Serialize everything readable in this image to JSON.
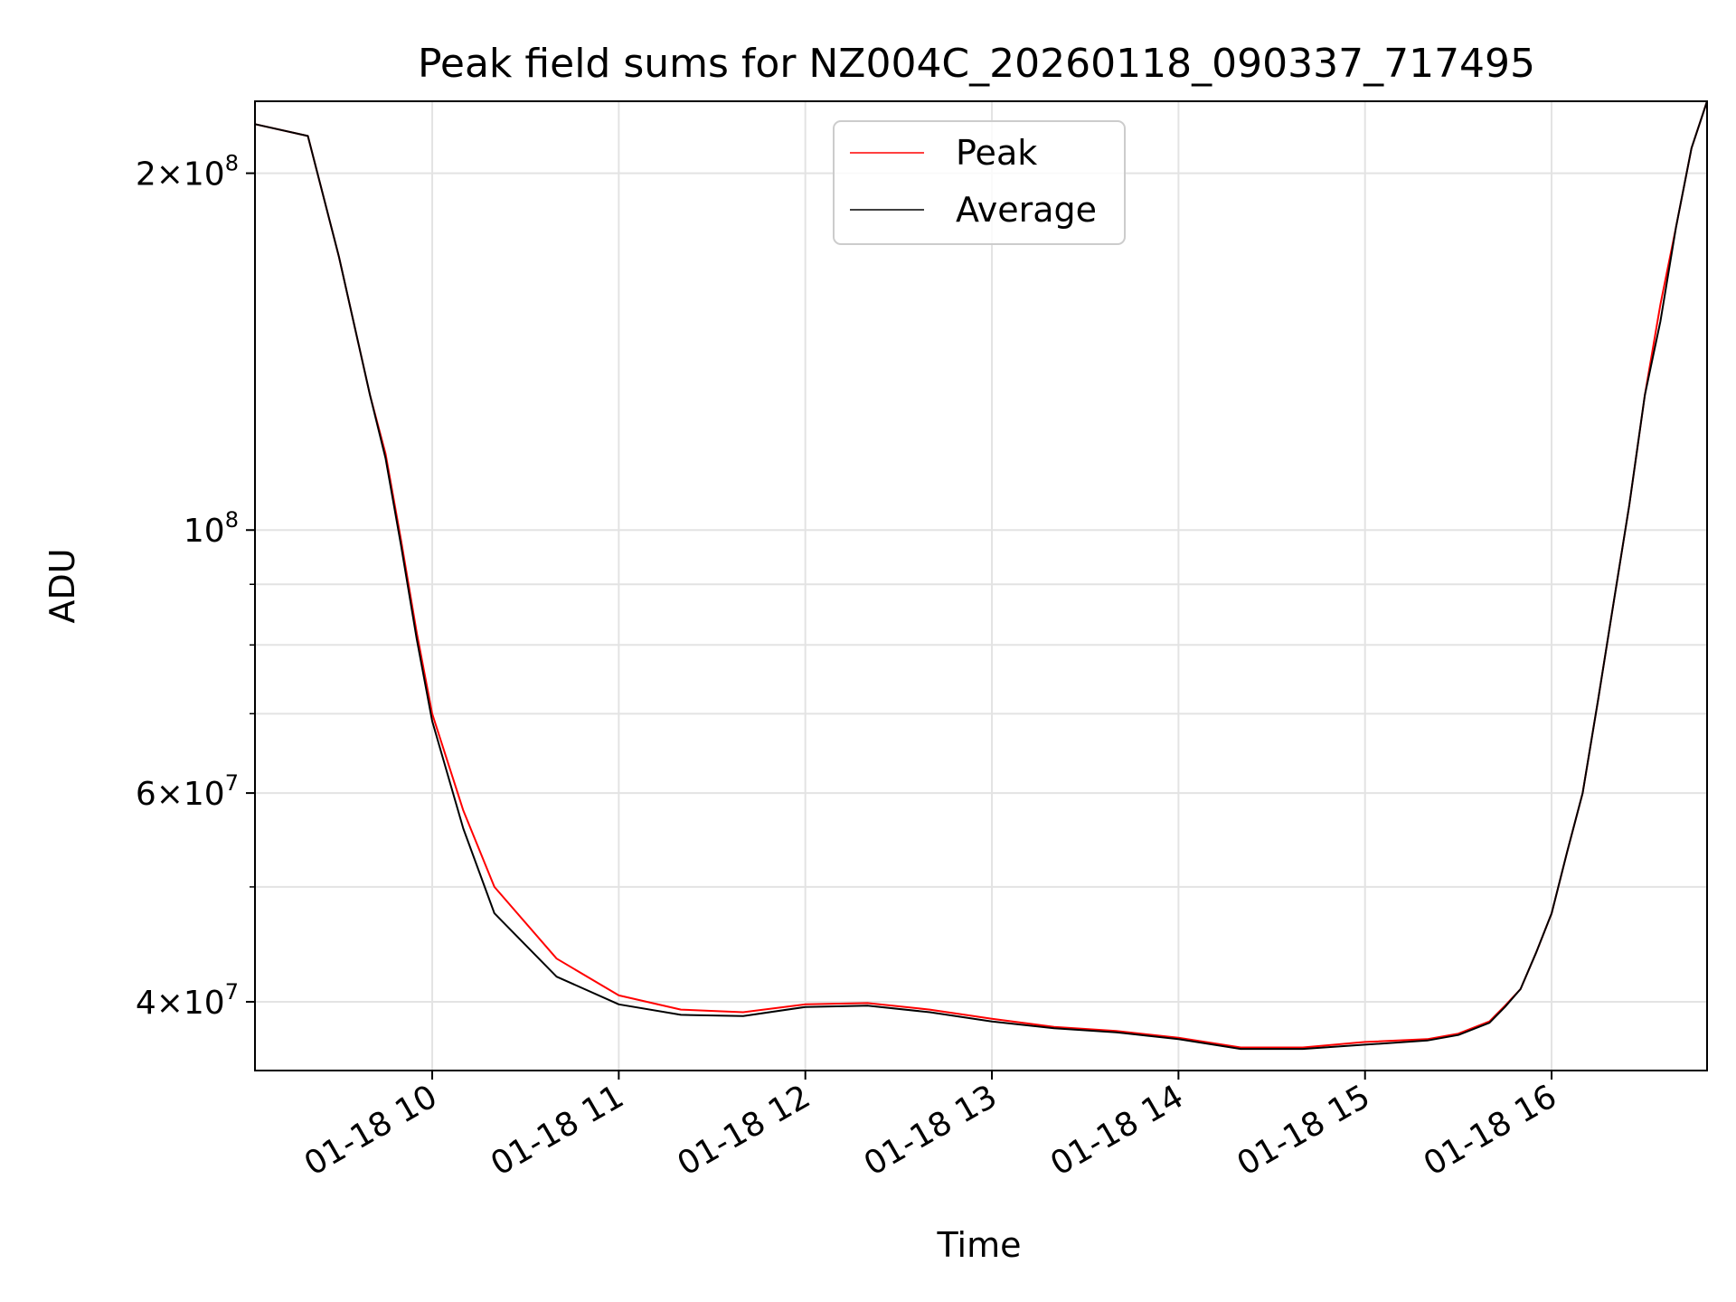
{
  "chart_data": {
    "type": "line",
    "title": "Peak field sums for NZ004C_20260118_090337_717495",
    "xlabel": "Time",
    "ylabel": "ADU",
    "yscale": "log",
    "xlim": [
      "2026-01-18 09:03",
      "2026-01-18 16:50"
    ],
    "ylim": [
      35000000,
      230000000
    ],
    "x_ticks": [
      "01-18 10",
      "01-18 11",
      "01-18 12",
      "01-18 13",
      "01-18 14",
      "01-18 15",
      "01-18 16"
    ],
    "y_ticks": [
      {
        "mantissa": "2",
        "exp": "8",
        "value": 200000000
      },
      {
        "mantissa": "",
        "exp": "8",
        "value": 100000000
      },
      {
        "mantissa": "6",
        "exp": "7",
        "value": 60000000
      },
      {
        "mantissa": "4",
        "exp": "7",
        "value": 40000000
      }
    ],
    "grid": true,
    "legend_position": "top-center",
    "colors": {
      "peak": "#ff0000",
      "average": "#000000"
    },
    "series": [
      {
        "name": "Peak",
        "x": [
          "09:03",
          "09:20",
          "09:30",
          "09:40",
          "09:45",
          "09:50",
          "09:55",
          "10:00",
          "10:10",
          "10:20",
          "10:40",
          "11:00",
          "11:20",
          "11:40",
          "12:00",
          "12:20",
          "12:40",
          "13:00",
          "13:20",
          "13:40",
          "14:00",
          "14:20",
          "14:40",
          "15:00",
          "15:20",
          "15:30",
          "15:40",
          "15:45",
          "15:50",
          "15:55",
          "16:00",
          "16:05",
          "16:10",
          "16:15",
          "16:20",
          "16:25",
          "16:30",
          "16:35",
          "16:40",
          "16:45",
          "16:50"
        ],
        "y": [
          220000000,
          215000000,
          170000000,
          130000000,
          116000000,
          98000000,
          82000000,
          70000000,
          58000000,
          50000000,
          43500000,
          40500000,
          39400000,
          39200000,
          39800000,
          39900000,
          39400000,
          38700000,
          38100000,
          37800000,
          37300000,
          36600000,
          36600000,
          37000000,
          37200000,
          37600000,
          38500000,
          39700000,
          41000000,
          44000000,
          47500000,
          53500000,
          60000000,
          72000000,
          87000000,
          105000000,
          130000000,
          155000000,
          180000000,
          210000000,
          230000000
        ]
      },
      {
        "name": "Average",
        "x": [
          "09:03",
          "09:20",
          "09:30",
          "09:40",
          "09:45",
          "09:50",
          "09:55",
          "10:00",
          "10:10",
          "10:20",
          "10:40",
          "11:00",
          "11:20",
          "11:40",
          "12:00",
          "12:20",
          "12:40",
          "13:00",
          "13:20",
          "13:40",
          "14:00",
          "14:20",
          "14:40",
          "15:00",
          "15:20",
          "15:30",
          "15:40",
          "15:45",
          "15:50",
          "15:55",
          "16:00",
          "16:05",
          "16:10",
          "16:15",
          "16:20",
          "16:25",
          "16:30",
          "16:35",
          "16:40",
          "16:45",
          "16:50"
        ],
        "y": [
          220000000,
          215000000,
          170000000,
          130000000,
          115000000,
          97000000,
          81000000,
          69000000,
          56000000,
          47500000,
          42000000,
          39800000,
          39000000,
          38900000,
          39600000,
          39700000,
          39200000,
          38500000,
          38000000,
          37700000,
          37200000,
          36500000,
          36500000,
          36800000,
          37100000,
          37500000,
          38400000,
          39600000,
          41000000,
          44000000,
          47500000,
          53500000,
          60000000,
          72000000,
          87000000,
          105000000,
          130000000,
          150000000,
          180000000,
          210000000,
          230000000
        ]
      }
    ]
  }
}
